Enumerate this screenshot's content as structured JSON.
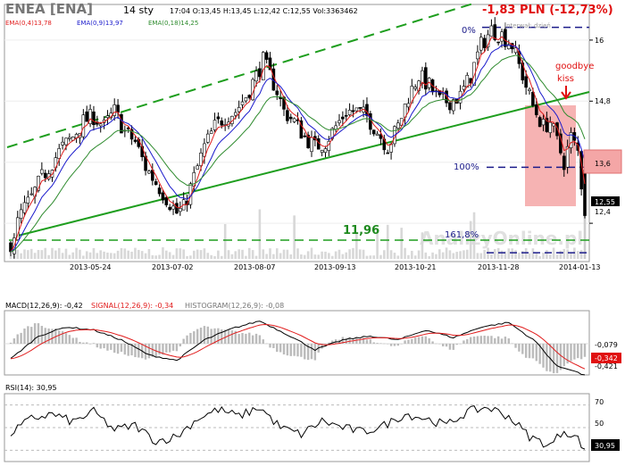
{
  "header": {
    "ticker": "ENEA [ENA]",
    "date": "14 sty",
    "quote": "17:04  O:13,45  H:13,45  L:12,42  C:12,55  Vol:3363462",
    "change": "-1,83 PLN (-12,73%)"
  },
  "price_legend": {
    "ema4": "EMA(0,4)13,78",
    "ema9": "EMA(0,9)13,97",
    "ema18": "EMA(0,18)14,25"
  },
  "price_axis": [
    "16",
    "14,8",
    "13,6",
    "12,4"
  ],
  "current_price": "12,55",
  "date_ticks": [
    "2013-05-24",
    "2013-07-02",
    "2013-08-07",
    "2013-09-13",
    "2013-10-21",
    "2013-11-28",
    "2014-01-13"
  ],
  "annotations": {
    "fib0": "0%",
    "fib100": "100%",
    "fib1618": "161,8%",
    "interval": "Interwał: dzień",
    "goodbye_line1": "goodbye",
    "goodbye_line2": "kiss",
    "support_level": "11,96",
    "watermark": "AnalizyOnline.pl"
  },
  "macd": {
    "label_macd": "MACD(12,26,9): -0,42",
    "label_signal": "SIGNAL(12,26,9): -0,34",
    "label_hist": "HISTOGRAM(12,26,9): -0,08",
    "axis_top": "-0,079",
    "axis_signal": "-0,342",
    "axis_low": "-0,421"
  },
  "rsi": {
    "label": "RSI(14): 30,95",
    "axis_70": "70",
    "axis_50": "50",
    "axis_30": "30",
    "current": "30,95"
  },
  "colors": {
    "candle": "#000000",
    "ema4": "#e11d1d",
    "ema9": "#1a1acc",
    "ema18": "#2e8b2e",
    "trend": "#1e9e1e",
    "fib": "#1c1c8a",
    "highlight": "#f4a6a6",
    "change": "#e01010"
  },
  "chart_data": {
    "type": "candlestick",
    "x_range": [
      "2013-04-29",
      "2014-01-14"
    ],
    "y_range": [
      11.7,
      16.7
    ],
    "price_series": [
      [
        0,
        12.0
      ],
      [
        3,
        12.6
      ],
      [
        6,
        12.9
      ],
      [
        9,
        13.3
      ],
      [
        12,
        13.6
      ],
      [
        15,
        13.9
      ],
      [
        18,
        14.1
      ],
      [
        21,
        14.4
      ],
      [
        24,
        14.5
      ],
      [
        27,
        14.3
      ],
      [
        30,
        14.6
      ],
      [
        33,
        14.2
      ],
      [
        36,
        14.0
      ],
      [
        39,
        13.5
      ],
      [
        42,
        13.2
      ],
      [
        45,
        12.9
      ],
      [
        48,
        12.6
      ],
      [
        50,
        12.7
      ],
      [
        53,
        13.3
      ],
      [
        56,
        13.9
      ],
      [
        59,
        14.3
      ],
      [
        62,
        14.5
      ],
      [
        65,
        14.6
      ],
      [
        68,
        14.9
      ],
      [
        71,
        15.3
      ],
      [
        73,
        15.6
      ],
      [
        75,
        15.3
      ],
      [
        77,
        15.0
      ],
      [
        79,
        14.6
      ],
      [
        82,
        14.4
      ],
      [
        85,
        14.1
      ],
      [
        88,
        13.9
      ],
      [
        91,
        14.0
      ],
      [
        94,
        14.3
      ],
      [
        97,
        14.6
      ],
      [
        100,
        14.6
      ],
      [
        103,
        14.5
      ],
      [
        106,
        14.2
      ],
      [
        109,
        13.9
      ],
      [
        112,
        14.3
      ],
      [
        115,
        14.9
      ],
      [
        118,
        15.3
      ],
      [
        121,
        15.1
      ],
      [
        124,
        14.8
      ],
      [
        127,
        14.8
      ],
      [
        130,
        14.9
      ],
      [
        133,
        15.3
      ],
      [
        136,
        15.9
      ],
      [
        139,
        16.2
      ],
      [
        142,
        16.1
      ],
      [
        145,
        15.9
      ],
      [
        148,
        15.3
      ],
      [
        151,
        14.7
      ],
      [
        154,
        14.3
      ],
      [
        156,
        14.4
      ],
      [
        158,
        14.0
      ],
      [
        160,
        13.6
      ],
      [
        162,
        14.1
      ],
      [
        164,
        13.8
      ],
      [
        166,
        12.55
      ]
    ],
    "ema4_last": 13.78,
    "ema9_last": 13.97,
    "ema18_last": 14.25,
    "fib_levels": [
      {
        "label": "0%",
        "price": 16.25
      },
      {
        "label": "100%",
        "price": 13.5
      },
      {
        "label": "161,8%",
        "price": 11.82
      }
    ],
    "support": 11.96,
    "macd_series": [
      [
        0,
        -0.2
      ],
      [
        8,
        0.1
      ],
      [
        16,
        0.22
      ],
      [
        24,
        0.18
      ],
      [
        32,
        0.05
      ],
      [
        40,
        -0.15
      ],
      [
        48,
        -0.22
      ],
      [
        56,
        0.05
      ],
      [
        64,
        0.2
      ],
      [
        72,
        0.3
      ],
      [
        80,
        0.12
      ],
      [
        88,
        -0.08
      ],
      [
        96,
        0.05
      ],
      [
        104,
        0.1
      ],
      [
        112,
        0.05
      ],
      [
        120,
        0.18
      ],
      [
        128,
        0.08
      ],
      [
        136,
        0.22
      ],
      [
        144,
        0.28
      ],
      [
        152,
        0.02
      ],
      [
        158,
        -0.3
      ],
      [
        162,
        -0.34
      ],
      [
        166,
        -0.42
      ]
    ],
    "signal_last": -0.34,
    "histogram_last": -0.08,
    "rsi_series": [
      [
        0,
        45
      ],
      [
        6,
        58
      ],
      [
        12,
        62
      ],
      [
        18,
        55
      ],
      [
        24,
        64
      ],
      [
        30,
        48
      ],
      [
        36,
        52
      ],
      [
        42,
        38
      ],
      [
        48,
        42
      ],
      [
        54,
        58
      ],
      [
        60,
        66
      ],
      [
        66,
        60
      ],
      [
        72,
        68
      ],
      [
        78,
        50
      ],
      [
        84,
        44
      ],
      [
        90,
        56
      ],
      [
        96,
        50
      ],
      [
        102,
        46
      ],
      [
        108,
        52
      ],
      [
        114,
        62
      ],
      [
        120,
        58
      ],
      [
        126,
        52
      ],
      [
        132,
        64
      ],
      [
        138,
        68
      ],
      [
        144,
        60
      ],
      [
        150,
        42
      ],
      [
        156,
        34
      ],
      [
        160,
        48
      ],
      [
        164,
        40
      ],
      [
        166,
        30.95
      ]
    ]
  }
}
